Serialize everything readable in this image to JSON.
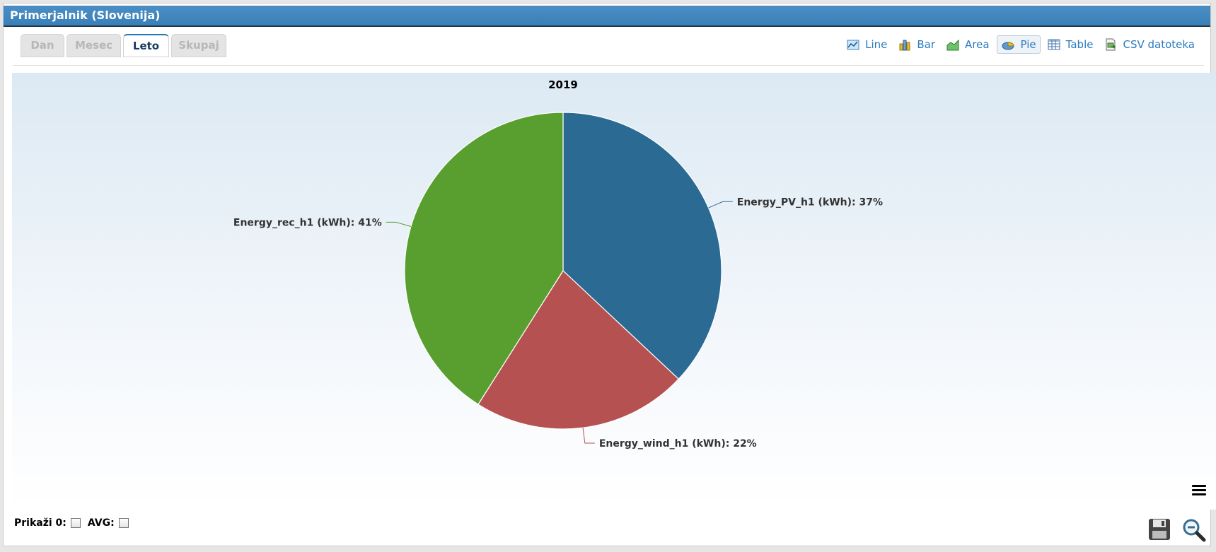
{
  "window": {
    "title": "Primerjalnik (Slovenija)"
  },
  "tabs": [
    {
      "label": "Dan",
      "active": false
    },
    {
      "label": "Mesec",
      "active": false
    },
    {
      "label": "Leto",
      "active": true
    },
    {
      "label": "Skupaj",
      "active": false
    }
  ],
  "toolbar": {
    "line": "Line",
    "bar": "Bar",
    "area": "Area",
    "pie": "Pie",
    "table": "Table",
    "csv": "CSV datoteka",
    "active": "Pie"
  },
  "options": {
    "show_zero_label": "Prikaži 0:",
    "avg_label": "AVG:",
    "show_zero": false,
    "avg": false
  },
  "icons": {
    "menu": "hamburger-menu-icon",
    "save": "floppy-disk-icon",
    "zoom_out": "magnifier-zoom-out-icon"
  },
  "chart_data": {
    "type": "pie",
    "title": "2019",
    "series": [
      {
        "name": "Energy_PV_h1 (kWh)",
        "percent": 37,
        "color": "#2a6a93"
      },
      {
        "name": "Energy_wind_h1 (kWh)",
        "percent": 22,
        "color": "#b55150"
      },
      {
        "name": "Energy_rec_h1 (kWh)",
        "percent": 41,
        "color": "#589f2f"
      }
    ],
    "labels": [
      "Energy_PV_h1 (kWh): 37%",
      "Energy_wind_h1 (kWh): 22%",
      "Energy_rec_h1 (kWh): 41%"
    ],
    "legend": "none",
    "background": "#dce9f3"
  }
}
